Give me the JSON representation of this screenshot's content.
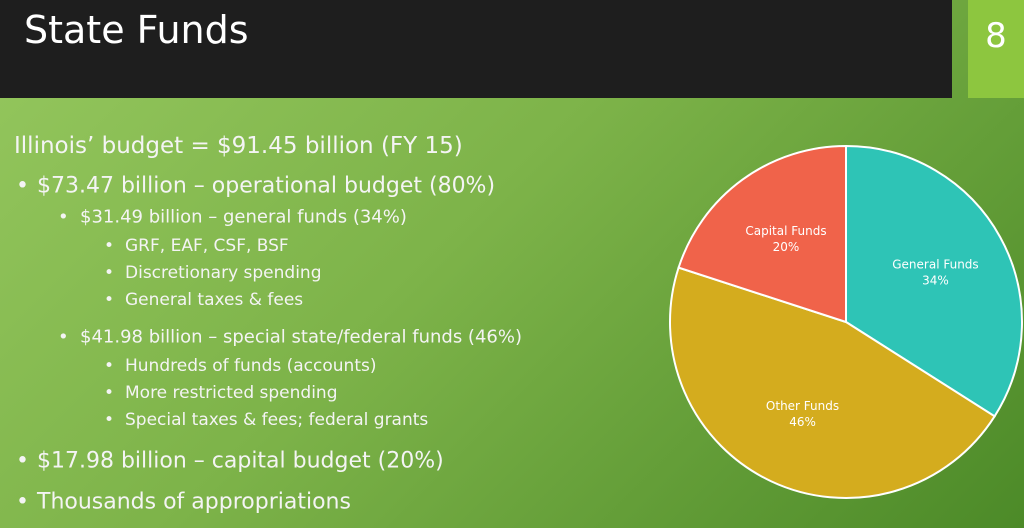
{
  "header": {
    "title": "State Funds",
    "slide_number": "8"
  },
  "body": {
    "headline": "Illinois’ budget = $91.45 billion (FY 15)",
    "bullets": [
      {
        "text": "$73.47 billion – operational budget (80%)",
        "children": [
          {
            "text": "$31.49 billion – general funds (34%)",
            "children": [
              "GRF, EAF, CSF, BSF",
              "Discretionary spending",
              "General taxes & fees"
            ]
          },
          {
            "text": "$41.98 billion – special state/federal funds (46%)",
            "children": [
              "Hundreds of funds (accounts)",
              "More restricted spending",
              "Special taxes & fees; federal grants"
            ]
          }
        ]
      },
      {
        "text": "$17.98 billion – capital budget (20%)"
      },
      {
        "text": "Thousands of appropriations"
      }
    ]
  },
  "chart_data": {
    "type": "pie",
    "categories": [
      "General Funds",
      "Other Funds",
      "Capital Funds"
    ],
    "values": [
      34,
      46,
      20
    ],
    "value_labels": [
      "34%",
      "46%",
      "20%"
    ],
    "colors": [
      "#2ec4b6",
      "#d4ac1e",
      "#f0634a"
    ]
  }
}
